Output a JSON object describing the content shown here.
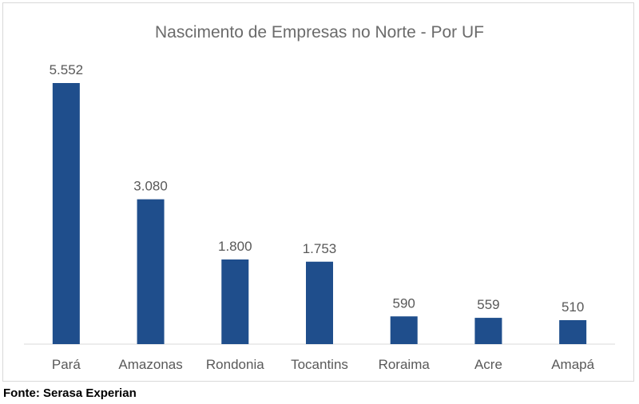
{
  "chart_data": {
    "type": "bar",
    "title": "Nascimento de Empresas no Norte - Por UF",
    "categories": [
      "Pará",
      "Amazonas",
      "Rondonia",
      "Tocantins",
      "Roraima",
      "Acre",
      "Amapá"
    ],
    "values": [
      5552,
      3080,
      1800,
      1753,
      590,
      559,
      510
    ],
    "value_labels": [
      "5.552",
      "3.080",
      "1.800",
      "1.753",
      "590",
      "559",
      "510"
    ],
    "xlabel": "",
    "ylabel": "",
    "ylim": [
      0,
      5552
    ],
    "grid": false,
    "legend": "none",
    "bar_color": "#1f4e8c",
    "title_color": "#6b6b6b",
    "label_color": "#595959"
  },
  "footer": {
    "source": "Fonte: Serasa Experian"
  }
}
